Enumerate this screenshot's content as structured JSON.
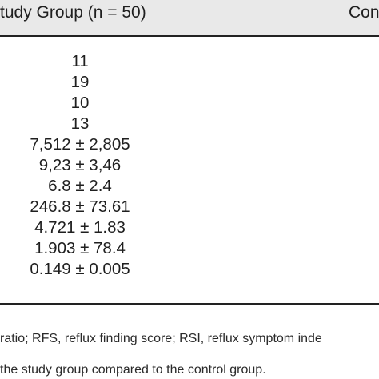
{
  "table": {
    "headers": {
      "study": "tudy Group (n = 50)",
      "control": "Con"
    },
    "study_values": [
      "11",
      "19",
      "10",
      "13",
      "7,512 ± 2,805",
      "9,23 ± 3,46",
      "6.8 ± 2.4",
      "246.8 ± 73.61",
      "4.721 ± 1.83",
      "1.903 ± 78.4",
      "0.149 ± 0.005"
    ]
  },
  "footnotes": {
    "line1": "ratio; RFS, reflux finding score; RSI, reflux symptom inde",
    "line2": "the study group compared to the control group."
  }
}
